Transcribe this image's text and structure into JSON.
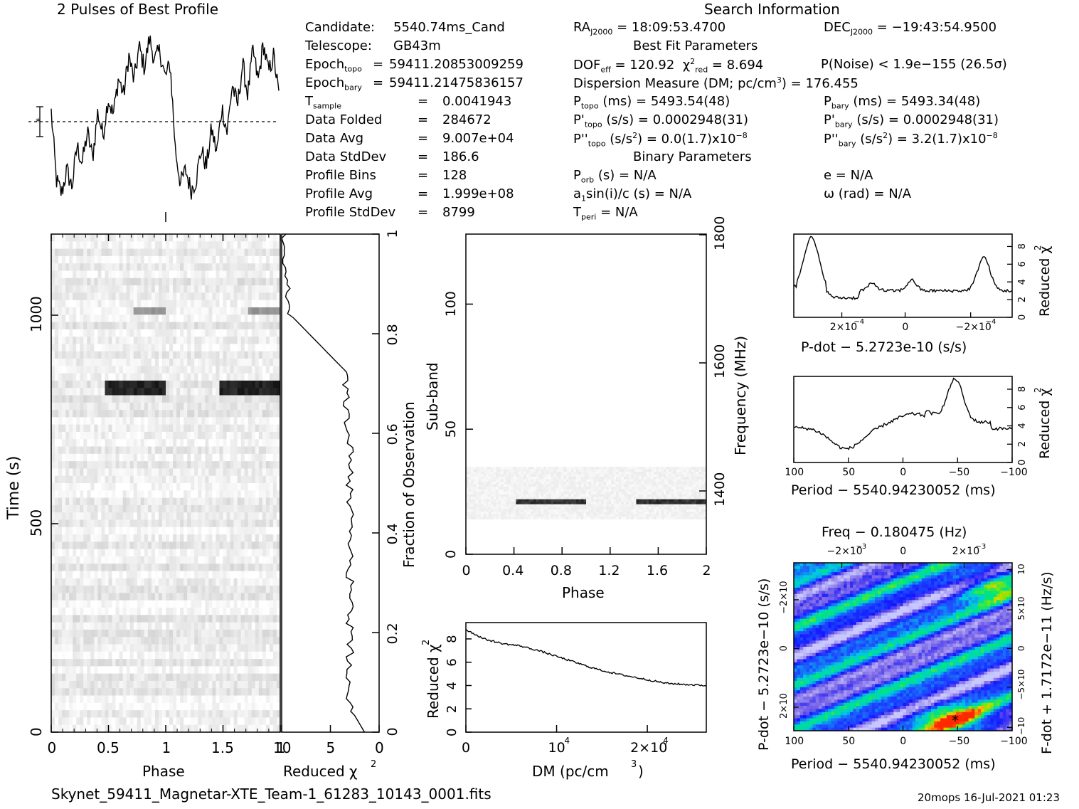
{
  "title": "2 Pulses of Best Profile",
  "search_header": "Search Information",
  "filename": "Skynet_59411_Magnetar-XTE_Team-1_61283_10143_0001.fits",
  "footer_right": "20mops 16-Jul-2021 01:23",
  "candidate_info": [
    {
      "label": "Candidate:",
      "value": "5540.74ms_Cand"
    },
    {
      "label": "Telescope:",
      "value": "GB43m"
    },
    {
      "label": "Epoch",
      "sub": "topo",
      "eq": "=",
      "value": "59411.20853009259"
    },
    {
      "label": "Epoch",
      "sub": "bary",
      "eq": "=",
      "value": "59411.21475836157"
    },
    {
      "label": "T",
      "sub": "sample",
      "eq": "=",
      "value": "0.0041943"
    },
    {
      "label": "Data Folded",
      "eq": "=",
      "value": "284672"
    },
    {
      "label": "Data Avg",
      "eq": "=",
      "value": "9.007e+04"
    },
    {
      "label": "Data StdDev",
      "eq": "=",
      "value": "186.6"
    },
    {
      "label": "Profile Bins",
      "eq": "=",
      "value": "128"
    },
    {
      "label": "Profile Avg",
      "eq": "=",
      "value": "1.999e+08"
    },
    {
      "label": "Profile StdDev",
      "eq": "=",
      "value": "8799"
    }
  ],
  "search_info": {
    "ra_label": "RA",
    "ra_sub": "J2000",
    "ra_value": "= 18:09:53.4700",
    "dec_label": "DEC",
    "dec_sub": "J2000",
    "dec_value": "= −19:43:54.9500",
    "best_fit_header": "Best Fit Parameters",
    "dof_label": "DOF",
    "dof_sub": "eff",
    "dof_value": "= 120.92",
    "chi_value": "= 8.694",
    "pnoise": "P(Noise) < 1.9e−155   (26.5σ)",
    "dm": "Dispersion Measure (DM; pc/cm",
    "dm_value": ") = 176.455",
    "ptopo_value": "(ms) =   5493.54(48)",
    "pbary_value": "(ms) =   5493.34(48)",
    "pdtopo_value": "(s/s) =   0.0002948(31)",
    "pdbary_value": "(s/s) =   0.0002948(31)",
    "pddtopo_value": "= 0.0(1.7)x10",
    "pddbary_value": "=   3.2(1.7)x10",
    "pdd_exp": "−8",
    "binary_header": "Binary Parameters",
    "porb": "(s) = N/A",
    "asini": "sin(i)/c (s) = N/A",
    "tperi": "= N/A",
    "ecc": "e = N/A",
    "omega": "ω (rad) = N/A"
  },
  "chart_data": [
    {
      "type": "line",
      "name": "profile",
      "title": "2 Pulses of Best Profile",
      "x_range": [
        0,
        2
      ],
      "description_values": [
        0.52,
        0.12,
        0.04,
        0.18,
        0.08,
        0.32,
        0.22,
        0.4,
        0.25,
        0.52,
        0.38,
        0.6,
        0.5,
        0.72,
        0.62,
        0.85,
        0.7,
        0.9,
        0.78,
        0.95,
        0.82,
        0.88,
        0.72,
        0.8,
        0.3,
        0.1,
        0.18,
        0.06,
        0.12,
        0.3,
        0.2,
        0.42,
        0.28,
        0.55,
        0.4,
        0.68,
        0.55,
        0.8,
        0.62,
        0.88,
        0.7,
        0.92,
        0.75,
        0.85,
        0.62
      ]
    },
    {
      "type": "line",
      "name": "time-chi2",
      "xlabel": "Reduced χ",
      "xlim": [
        10,
        0
      ],
      "x_ticks": [
        "10",
        "5",
        "0"
      ],
      "frac_ticks": [
        "0",
        "0.2",
        "0.4",
        "0.6",
        "0.8",
        "1"
      ],
      "ylabel_right": "Fraction of Observation"
    },
    {
      "type": "heatmap",
      "name": "time-phase",
      "xlabel": "Phase",
      "ylabel": "Time (s)",
      "xlim": [
        0,
        2
      ],
      "ylim": [
        0,
        1195
      ],
      "x_ticks": [
        "0",
        "0.5",
        "1",
        "1.5",
        "1"
      ],
      "y_ticks": [
        "0",
        "500",
        "1000"
      ]
    },
    {
      "type": "heatmap",
      "name": "subband-phase",
      "xlabel": "Phase",
      "ylabel": "Sub-band",
      "ylabel_right": "Frequency (MHz)",
      "xlim": [
        0,
        2
      ],
      "ylim": [
        0,
        128
      ],
      "x_ticks": [
        "0",
        "0.4",
        "0.8",
        "1.2",
        "1.6",
        "2"
      ],
      "y_ticks": [
        "0",
        "50",
        "100"
      ],
      "freq_ticks": [
        "1400",
        "1600",
        "1800"
      ]
    },
    {
      "type": "line",
      "name": "dm-chi2",
      "xlabel": "DM (pc/cm",
      "ylabel": "Reduced χ",
      "x_ticks": [
        "0",
        "10",
        "2×10"
      ],
      "y_ticks": [
        "0",
        "2",
        "4",
        "6",
        "8"
      ],
      "x": [
        0,
        2000,
        4000,
        6000,
        8000,
        10000,
        12000,
        14000,
        16000,
        18000,
        20000,
        22000,
        24000,
        26500
      ],
      "values": [
        8.8,
        8.0,
        7.6,
        7.4,
        7.0,
        6.5,
        6.0,
        5.5,
        5.1,
        4.8,
        4.5,
        4.2,
        4.1,
        4.0
      ],
      "ylim": [
        0,
        9.4
      ]
    },
    {
      "type": "line",
      "name": "pdot-chi2",
      "xlabel": "P-dot − 5.2723e-10 (s/s)",
      "ylabel": "Reduced χ",
      "x_ticks": [
        "2×10",
        "0",
        "−2×10"
      ],
      "tick_exp": "−4",
      "y_ticks": [
        "0",
        "2",
        "4",
        "6",
        "8"
      ],
      "ylim": [
        0,
        9.4
      ]
    },
    {
      "type": "line",
      "name": "period-chi2",
      "xlabel": "Period − 5540.94230052 (ms)",
      "ylabel": "Reduced χ",
      "x_ticks": [
        "100",
        "50",
        "0",
        "−50",
        "−100"
      ],
      "y_ticks": [
        "0",
        "2",
        "4",
        "6",
        "8"
      ],
      "ylim": [
        0,
        9.4
      ]
    },
    {
      "type": "heatmap",
      "name": "p-pdot",
      "top_label": "Freq − 0.180475 (Hz)",
      "xlabel": "Period − 5540.94230052 (ms)",
      "ylabel": "P-dot − 5.2723e−10 (s/s)",
      "ylabel_right": "F-dot + 1.7172e−11 (Hz/s)",
      "x_ticks": [
        "100",
        "50",
        "0",
        "−50",
        "−100"
      ],
      "top_ticks": [
        "−2×10",
        "0",
        "2×10"
      ],
      "top_exp": "−3",
      "left_ticks": [
        "−2×10",
        "0",
        "2×10"
      ],
      "left_exp": "−4",
      "right_ticks": [
        "10",
        "5×10",
        "0",
        "−5×10",
        "−10"
      ]
    }
  ]
}
